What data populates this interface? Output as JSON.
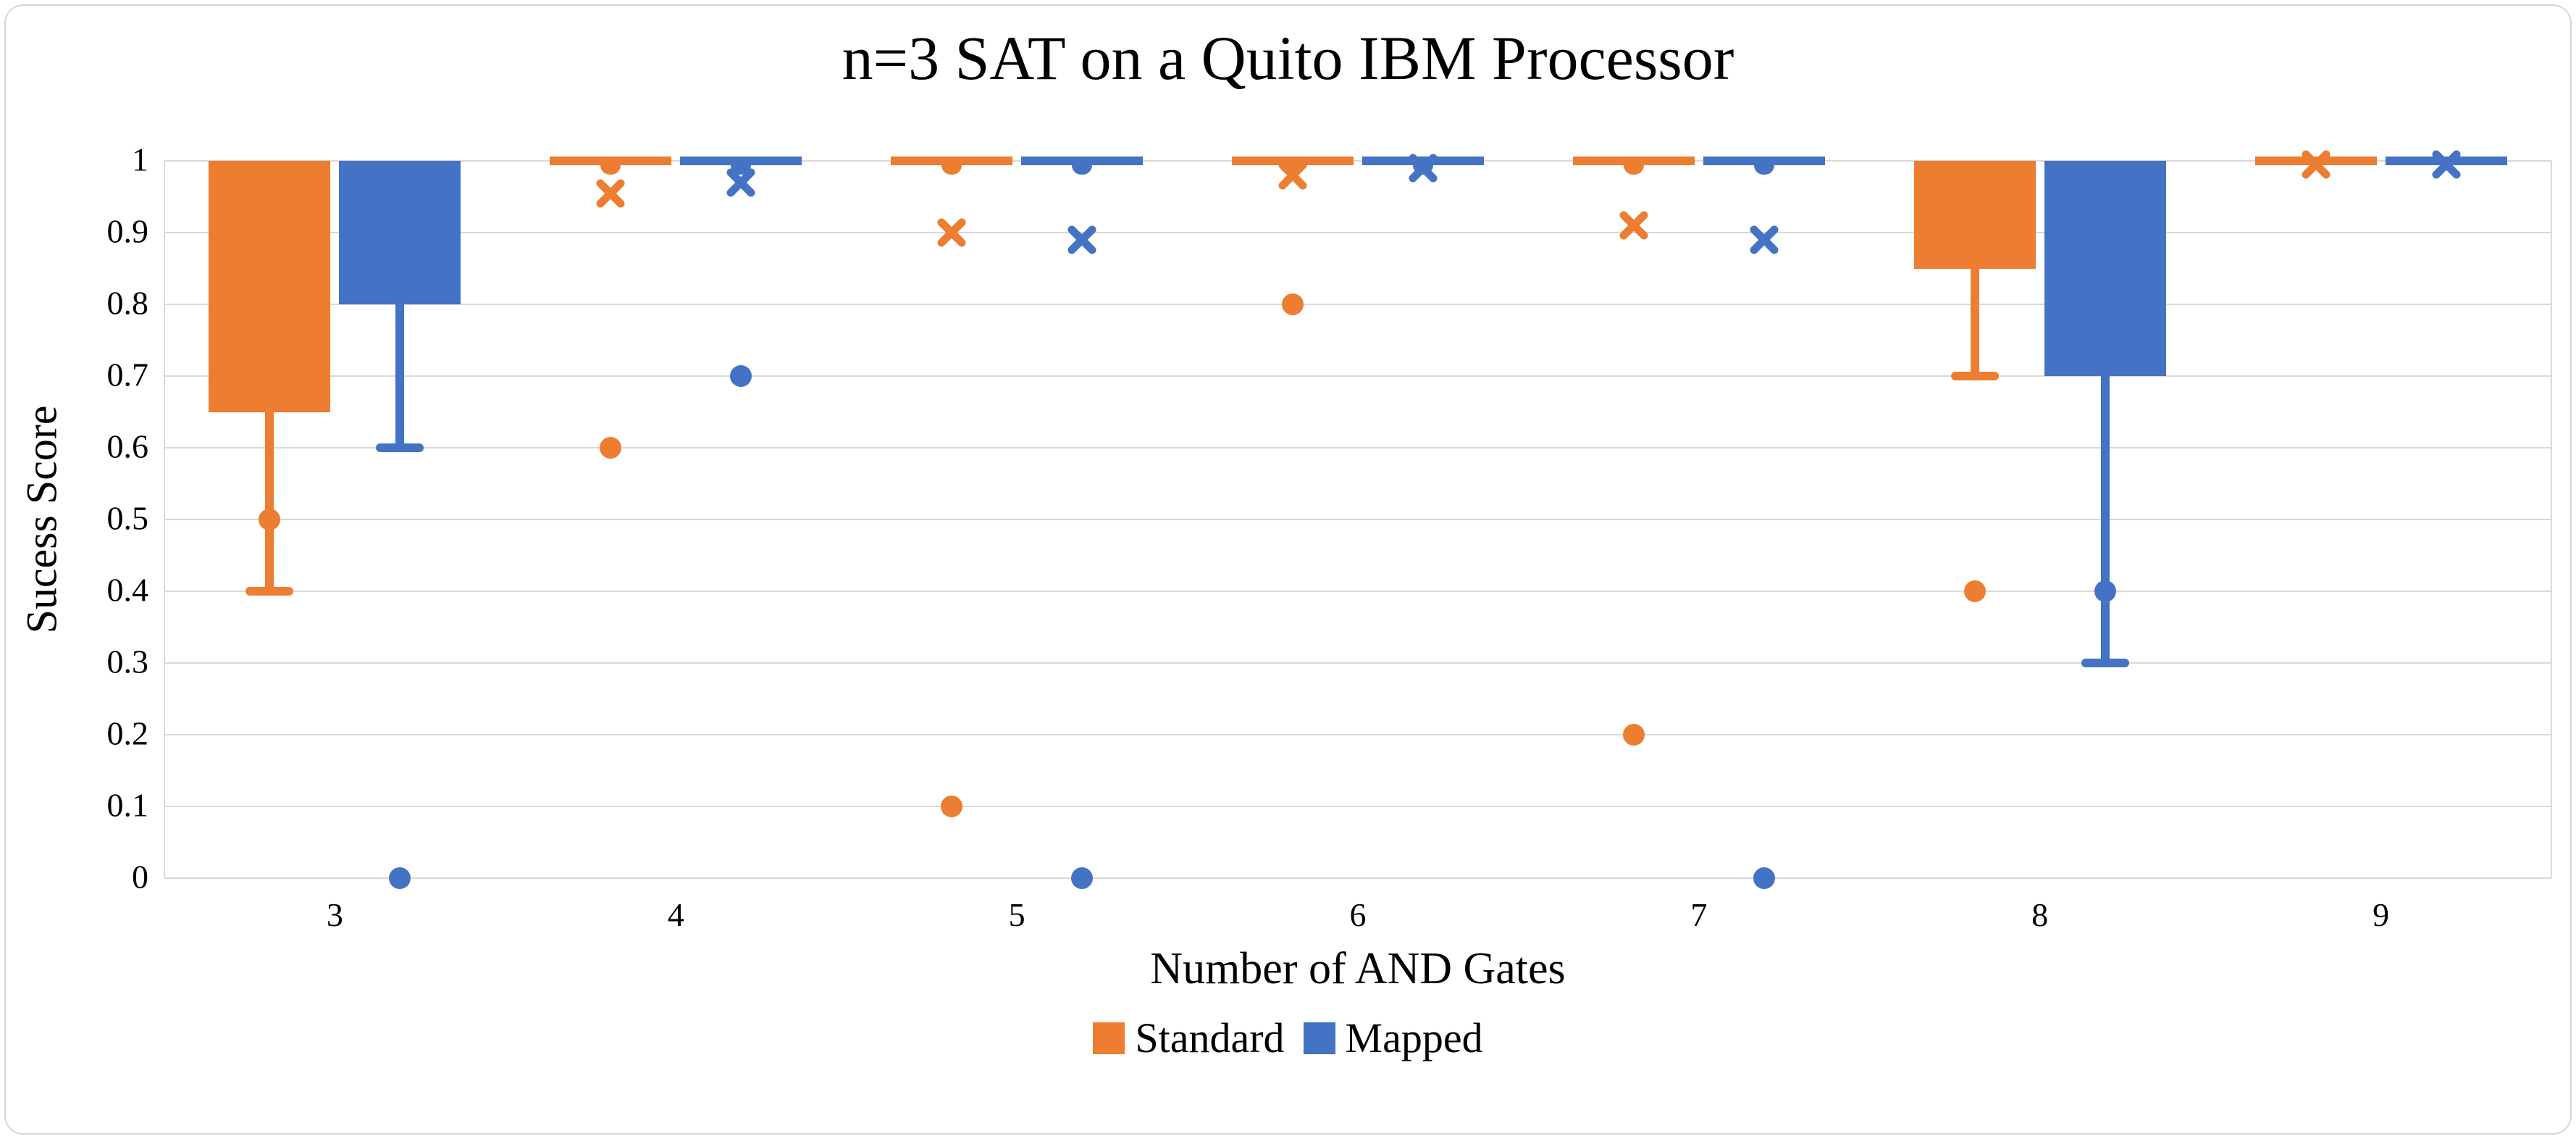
{
  "title": "n=3 SAT on a Quito IBM Processor",
  "axes": {
    "y_label": "Sucess Score",
    "x_label": "Number of AND Gates"
  },
  "legend": {
    "items": [
      {
        "label": "Standard",
        "color": "#ED7D31"
      },
      {
        "label": "Mapped",
        "color": "#4472C4"
      }
    ]
  },
  "colors": {
    "standard": "#ED7D31",
    "mapped": "#4472C4",
    "gridline": "#D9D9D9",
    "text": "#000000"
  },
  "chart_data": {
    "type": "boxplot",
    "title": "n=3 SAT on a Quito IBM Processor",
    "xlabel": "Number of AND Gates",
    "ylabel": "Sucess Score",
    "categories": [
      "3",
      "4",
      "5",
      "6",
      "7",
      "8",
      "9"
    ],
    "ylim": [
      0,
      1
    ],
    "grid": true,
    "legend_position": "bottom",
    "y_ticks": [
      {
        "label": "1",
        "value": 1.0
      },
      {
        "label": "0.9",
        "value": 0.9
      },
      {
        "label": "0.8",
        "value": 0.8
      },
      {
        "label": "0.7",
        "value": 0.7
      },
      {
        "label": "0.6",
        "value": 0.6
      },
      {
        "label": "0.5",
        "value": 0.5
      },
      {
        "label": "0.4",
        "value": 0.4
      },
      {
        "label": "0.3",
        "value": 0.3
      },
      {
        "label": "0.2",
        "value": 0.2
      },
      {
        "label": "0.1",
        "value": 0.1
      },
      {
        "label": "0",
        "value": 0.0
      }
    ],
    "series": [
      {
        "name": "Standard",
        "color": "#ED7D31",
        "boxes": [
          {
            "cat": "3",
            "q1": 0.65,
            "q3": 1.0,
            "whisker_low": 0.4,
            "mean": null,
            "notch": false,
            "points": [
              0.5
            ]
          },
          {
            "cat": "4",
            "q1": 1.0,
            "q3": 1.0,
            "whisker_low": null,
            "mean": 0.955,
            "notch": true,
            "points": [
              0.6
            ]
          },
          {
            "cat": "5",
            "q1": 1.0,
            "q3": 1.0,
            "whisker_low": null,
            "mean": 0.9,
            "notch": true,
            "points": [
              0.1
            ]
          },
          {
            "cat": "6",
            "q1": 1.0,
            "q3": 1.0,
            "whisker_low": null,
            "mean": 0.98,
            "notch": true,
            "points": [
              0.8
            ]
          },
          {
            "cat": "7",
            "q1": 1.0,
            "q3": 1.0,
            "whisker_low": null,
            "mean": 0.91,
            "notch": true,
            "points": [
              0.2
            ]
          },
          {
            "cat": "8",
            "q1": 0.85,
            "q3": 1.0,
            "whisker_low": 0.7,
            "mean": null,
            "notch": false,
            "points": [
              0.4
            ]
          },
          {
            "cat": "9",
            "q1": 1.0,
            "q3": 1.0,
            "whisker_low": null,
            "mean": 0.995,
            "notch": false,
            "points": []
          }
        ]
      },
      {
        "name": "Mapped",
        "color": "#4472C4",
        "boxes": [
          {
            "cat": "3",
            "q1": 0.8,
            "q3": 1.0,
            "whisker_low": 0.6,
            "mean": null,
            "notch": false,
            "points": [
              0.0
            ]
          },
          {
            "cat": "4",
            "q1": 1.0,
            "q3": 1.0,
            "whisker_low": null,
            "mean": 0.97,
            "notch": true,
            "points": [
              0.7
            ]
          },
          {
            "cat": "5",
            "q1": 1.0,
            "q3": 1.0,
            "whisker_low": null,
            "mean": 0.89,
            "notch": true,
            "points": [
              0.0
            ]
          },
          {
            "cat": "6",
            "q1": 1.0,
            "q3": 1.0,
            "whisker_low": null,
            "mean": 0.99,
            "notch": true,
            "points": []
          },
          {
            "cat": "7",
            "q1": 1.0,
            "q3": 1.0,
            "whisker_low": null,
            "mean": 0.89,
            "notch": true,
            "points": [
              0.0
            ]
          },
          {
            "cat": "8",
            "q1": 0.7,
            "q3": 1.0,
            "whisker_low": 0.3,
            "mean": null,
            "notch": false,
            "points": [
              0.4
            ]
          },
          {
            "cat": "9",
            "q1": 1.0,
            "q3": 1.0,
            "whisker_low": null,
            "mean": 0.995,
            "notch": false,
            "points": []
          }
        ]
      }
    ]
  }
}
